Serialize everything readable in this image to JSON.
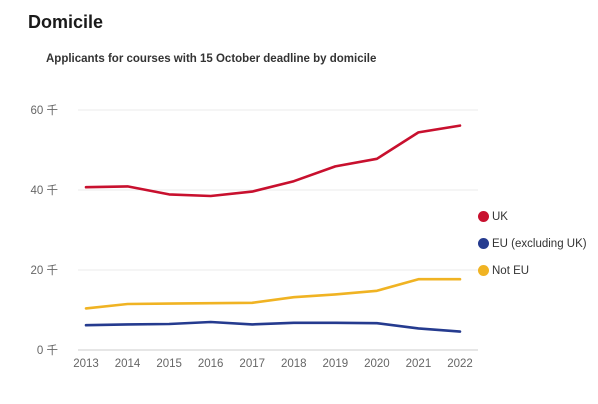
{
  "section_title": "Domicile",
  "chart_data": {
    "type": "line",
    "title": "Applicants for courses with 15 October deadline by domicile",
    "xlabel": "",
    "ylabel": "",
    "x": [
      "2013",
      "2014",
      "2015",
      "2016",
      "2017",
      "2018",
      "2019",
      "2020",
      "2021",
      "2022"
    ],
    "ylim": [
      0,
      60000
    ],
    "yticks": [
      0,
      20000,
      40000,
      60000
    ],
    "ytick_labels": [
      "0 千",
      "20 千",
      "40 千",
      "60 千"
    ],
    "grid": true,
    "legend_position": "right",
    "series": [
      {
        "name": "UK",
        "color": "#c8102e",
        "values": [
          40700,
          40900,
          38900,
          38500,
          39600,
          42200,
          45900,
          47800,
          54400,
          56100
        ]
      },
      {
        "name": "EU (excluding UK)",
        "color": "#253b8f",
        "values": [
          6200,
          6400,
          6500,
          7000,
          6400,
          6800,
          6800,
          6700,
          5400,
          4600
        ]
      },
      {
        "name": "Not EU",
        "color": "#f0b323",
        "values": [
          10400,
          11500,
          11600,
          11700,
          11800,
          13200,
          13900,
          14800,
          17700,
          17700
        ]
      }
    ]
  }
}
